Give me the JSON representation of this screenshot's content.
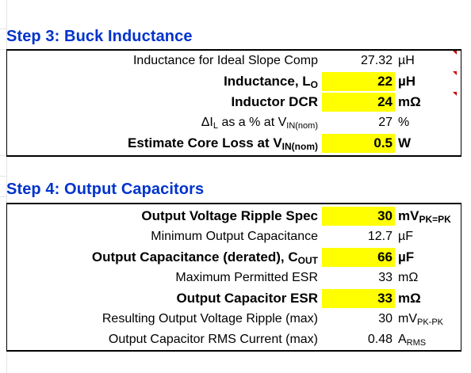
{
  "step3": {
    "title": "Step 3: Buck Inductance",
    "rows": [
      {
        "label": "Inductance for Ideal Slope Comp",
        "value": "27.32",
        "unit": "µH"
      },
      {
        "label": "Inductance, L",
        "label_sub": "O",
        "value": "22",
        "unit": "µH"
      },
      {
        "label": "Inductor DCR",
        "value": "24",
        "unit": "mΩ"
      },
      {
        "label_prefix": "ΔI",
        "label_prefix_sub": "L",
        "label": " as a % at V",
        "label_sub": "IN(nom)",
        "value": "27",
        "unit": "%"
      },
      {
        "label": "Estimate Core Loss at V",
        "label_sub": "IN(nom)",
        "value": "0.5",
        "unit": "W"
      }
    ]
  },
  "step4": {
    "title": "Step 4: Output Capacitors",
    "rows": [
      {
        "label": "Output Voltage Ripple Spec",
        "value": "30",
        "unit": "mV",
        "unit_sub": "PK=PK"
      },
      {
        "label": "Minimum Output Capacitance",
        "value": "12.7",
        "unit": "µF"
      },
      {
        "label": "Output Capacitance (derated), C",
        "label_sub": "OUT",
        "value": "66",
        "unit": "µF"
      },
      {
        "label": "Maximum Permitted ESR",
        "value": "33",
        "unit": "mΩ"
      },
      {
        "label": "Output Capacitor ESR",
        "value": "33",
        "unit": "mΩ"
      },
      {
        "label": "Resulting Output Voltage Ripple (max)",
        "value": "30",
        "unit": "mV",
        "unit_sub": "PK-PK"
      },
      {
        "label": "Output Capacitor RMS Current (max)",
        "value": "0.48",
        "unit": "A",
        "unit_sub": "RMS"
      }
    ]
  },
  "colors": {
    "title": "#0033cc",
    "input_fill": "#ffff00",
    "comment_marker": "#cc0000"
  }
}
